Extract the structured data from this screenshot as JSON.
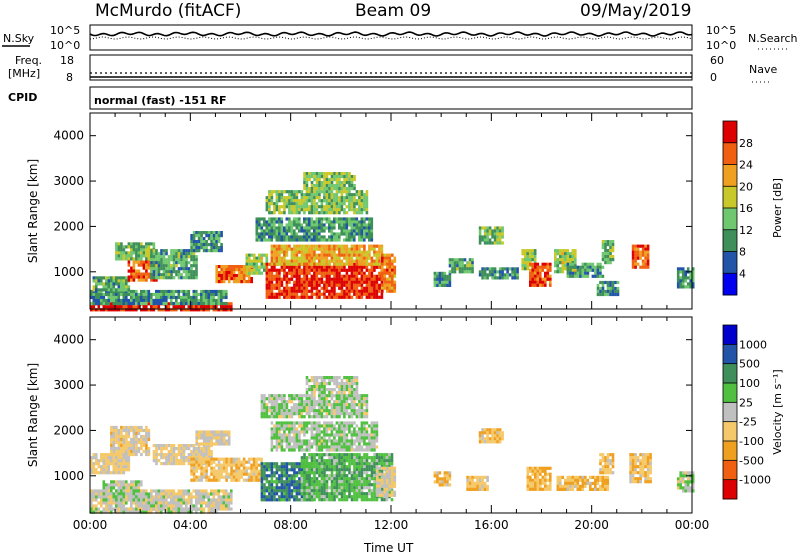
{
  "header": {
    "station": "McMurdo (fitACF)",
    "beam": "Beam 09",
    "date": "09/May/2019"
  },
  "noise_panel": {
    "left_label": "N.Sky",
    "right_label": "N.Search",
    "left_ticks": [
      "10^5",
      "10^0"
    ],
    "right_ticks": [
      "10^5",
      "10^0"
    ]
  },
  "freq_panel": {
    "left_label_1": "Freq.",
    "left_label_2": "[MHz]",
    "left_ticks": [
      "18",
      "8"
    ],
    "right_label": "Nave",
    "right_ticks": [
      "60",
      "0"
    ]
  },
  "cpid_panel": {
    "label": "CPID",
    "text": "normal (fast) -151 RF"
  },
  "chart_data": [
    {
      "type": "heatmap",
      "name": "power",
      "ylabel": "Slant Range [km]",
      "ylim": [
        180,
        4500
      ],
      "yticks": [
        1000,
        2000,
        3000,
        4000
      ],
      "xlim_hours": [
        0,
        24
      ],
      "colorbar": {
        "label": "Power [dB]",
        "range": [
          0,
          32
        ],
        "ticks": [
          "28",
          "24",
          "20",
          "16",
          "12",
          "8",
          "4"
        ],
        "colors": [
          "#0000ee",
          "#2255aa",
          "#3f8f5a",
          "#6fc76f",
          "#c8c82a",
          "#f0a020",
          "#f06010",
          "#dd0000"
        ]
      },
      "regions": [
        {
          "t0": 0.0,
          "t1": 5.6,
          "r0": 180,
          "r1": 330,
          "v": 30
        },
        {
          "t0": 0.0,
          "t1": 5.4,
          "r0": 330,
          "r1": 600,
          "v": 10
        },
        {
          "t0": 0.1,
          "t1": 1.5,
          "r0": 600,
          "r1": 900,
          "v": 12
        },
        {
          "t0": 1.5,
          "t1": 2.6,
          "r0": 800,
          "r1": 1250,
          "v": 26
        },
        {
          "t0": 1.0,
          "t1": 2.5,
          "r0": 1300,
          "r1": 1650,
          "v": 13
        },
        {
          "t0": 2.4,
          "t1": 4.2,
          "r0": 900,
          "r1": 1500,
          "v": 12
        },
        {
          "t0": 4.0,
          "t1": 5.2,
          "r0": 1500,
          "r1": 1900,
          "v": 10
        },
        {
          "t0": 5.0,
          "t1": 6.4,
          "r0": 800,
          "r1": 1150,
          "v": 25
        },
        {
          "t0": 6.2,
          "t1": 7.0,
          "r0": 1000,
          "r1": 1400,
          "v": 16
        },
        {
          "t0": 7.0,
          "t1": 11.6,
          "r0": 450,
          "r1": 1200,
          "v": 29
        },
        {
          "t0": 7.2,
          "t1": 11.6,
          "r0": 1200,
          "r1": 1600,
          "v": 21
        },
        {
          "t0": 6.6,
          "t1": 11.2,
          "r0": 1700,
          "r1": 2200,
          "v": 11
        },
        {
          "t0": 7.0,
          "t1": 11.0,
          "r0": 2300,
          "r1": 2800,
          "v": 14
        },
        {
          "t0": 8.5,
          "t1": 10.5,
          "r0": 2850,
          "r1": 3200,
          "v": 15
        },
        {
          "t0": 11.6,
          "t1": 12.1,
          "r0": 600,
          "r1": 1400,
          "v": 24
        },
        {
          "t0": 13.7,
          "t1": 14.3,
          "r0": 700,
          "r1": 1000,
          "v": 11
        },
        {
          "t0": 14.3,
          "t1": 15.2,
          "r0": 1000,
          "r1": 1300,
          "v": 12
        },
        {
          "t0": 15.5,
          "t1": 16.4,
          "r0": 1650,
          "r1": 2000,
          "v": 13
        },
        {
          "t0": 15.5,
          "t1": 17.0,
          "r0": 900,
          "r1": 1100,
          "v": 10
        },
        {
          "t0": 17.2,
          "t1": 17.7,
          "r0": 1100,
          "r1": 1500,
          "v": 15
        },
        {
          "t0": 17.5,
          "t1": 18.3,
          "r0": 700,
          "r1": 1200,
          "v": 27
        },
        {
          "t0": 18.5,
          "t1": 19.3,
          "r0": 1000,
          "r1": 1500,
          "v": 16
        },
        {
          "t0": 19.0,
          "t1": 20.4,
          "r0": 900,
          "r1": 1200,
          "v": 11
        },
        {
          "t0": 20.4,
          "t1": 20.8,
          "r0": 1200,
          "r1": 1700,
          "v": 13
        },
        {
          "t0": 20.2,
          "t1": 21.0,
          "r0": 500,
          "r1": 800,
          "v": 10
        },
        {
          "t0": 21.6,
          "t1": 22.2,
          "r0": 1100,
          "r1": 1600,
          "v": 26
        },
        {
          "t0": 23.4,
          "t1": 24.0,
          "r0": 700,
          "r1": 1100,
          "v": 11
        }
      ]
    },
    {
      "type": "heatmap",
      "name": "velocity",
      "ylabel": "Slant Range [km]",
      "ylim": [
        180,
        4500
      ],
      "yticks": [
        1000,
        2000,
        3000,
        4000
      ],
      "xlabel": "Time UT",
      "xticks": [
        "00:00",
        "04:00",
        "08:00",
        "12:00",
        "16:00",
        "20:00",
        "00:00"
      ],
      "xlim_hours": [
        0,
        24
      ],
      "colorbar": {
        "label": "Velocity [m s⁻¹]",
        "range": [
          -1200,
          1200
        ],
        "ticks": [
          "1000",
          "500",
          "100",
          "25",
          "-25",
          "-100",
          "-500",
          "-1000"
        ],
        "colors": [
          "#dd0000",
          "#f06010",
          "#f0a020",
          "#f5c869",
          "#c0c0c0",
          "#50c040",
          "#3f8f5a",
          "#2255aa",
          "#0000cc"
        ]
      },
      "regions": [
        {
          "t0": 0.0,
          "t1": 5.0,
          "r0": 180,
          "r1": 300,
          "v": 20
        },
        {
          "t0": 0.0,
          "t1": 5.6,
          "r0": 300,
          "r1": 700,
          "v": -60
        },
        {
          "t0": 0.5,
          "t1": 2.0,
          "r0": 500,
          "r1": 900,
          "v": 60
        },
        {
          "t0": 0.0,
          "t1": 1.5,
          "r0": 1100,
          "r1": 1500,
          "v": -150
        },
        {
          "t0": 0.8,
          "t1": 2.3,
          "r0": 1500,
          "r1": 2100,
          "v": -200
        },
        {
          "t0": 2.5,
          "t1": 4.8,
          "r0": 1300,
          "r1": 1700,
          "v": -150
        },
        {
          "t0": 4.0,
          "t1": 6.8,
          "r0": 900,
          "r1": 1400,
          "v": -300
        },
        {
          "t0": 4.2,
          "t1": 5.5,
          "r0": 1700,
          "r1": 2000,
          "v": -150
        },
        {
          "t0": 6.8,
          "t1": 8.8,
          "r0": 450,
          "r1": 1300,
          "v": 600
        },
        {
          "t0": 8.4,
          "t1": 12.0,
          "r0": 500,
          "r1": 1500,
          "v": 300
        },
        {
          "t0": 7.2,
          "t1": 11.4,
          "r0": 1600,
          "r1": 2200,
          "v": 80
        },
        {
          "t0": 6.8,
          "t1": 11.0,
          "r0": 2300,
          "r1": 2800,
          "v": 80
        },
        {
          "t0": 8.6,
          "t1": 10.6,
          "r0": 2850,
          "r1": 3200,
          "v": 60
        },
        {
          "t0": 11.4,
          "t1": 12.1,
          "r0": 600,
          "r1": 1200,
          "v": -150
        },
        {
          "t0": 13.7,
          "t1": 14.3,
          "r0": 800,
          "r1": 1100,
          "v": -300
        },
        {
          "t0": 15.5,
          "t1": 16.4,
          "r0": 1750,
          "r1": 2050,
          "v": -300
        },
        {
          "t0": 15.0,
          "t1": 15.8,
          "r0": 700,
          "r1": 1000,
          "v": -300
        },
        {
          "t0": 17.4,
          "t1": 18.3,
          "r0": 700,
          "r1": 1200,
          "v": -400
        },
        {
          "t0": 18.6,
          "t1": 20.6,
          "r0": 700,
          "r1": 1000,
          "v": -350
        },
        {
          "t0": 20.3,
          "t1": 20.8,
          "r0": 1100,
          "r1": 1500,
          "v": -300
        },
        {
          "t0": 21.5,
          "t1": 22.3,
          "r0": 900,
          "r1": 1500,
          "v": -300
        },
        {
          "t0": 23.4,
          "t1": 24.0,
          "r0": 700,
          "r1": 1100,
          "v": 80
        }
      ]
    }
  ]
}
